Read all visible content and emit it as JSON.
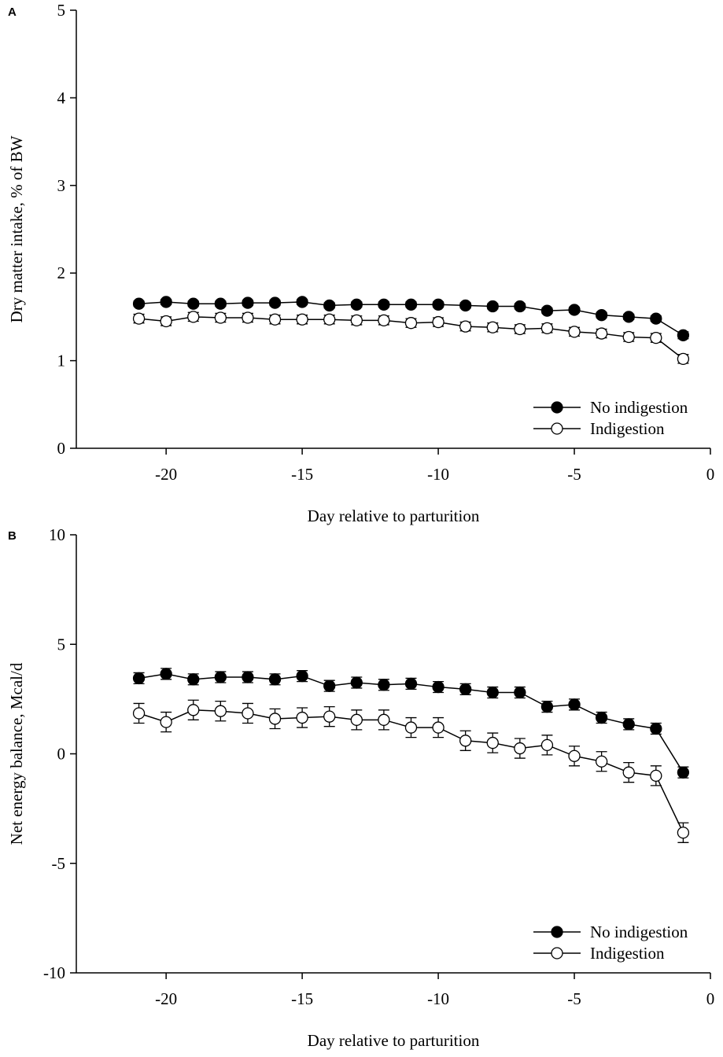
{
  "chart_data": [
    {
      "type": "line",
      "panel": "A",
      "xlabel": "Day relative to parturition",
      "ylabel": "Dry matter intake, % of BW",
      "x": [
        -21,
        -20,
        -19,
        -18,
        -17,
        -16,
        -15,
        -14,
        -13,
        -12,
        -11,
        -10,
        -9,
        -8,
        -7,
        -6,
        -5,
        -4,
        -3,
        -2,
        -1
      ],
      "xlim": [
        -23.3,
        0
      ],
      "xticks": [
        -20,
        -15,
        -10,
        -5,
        0
      ],
      "ylim": [
        0,
        5
      ],
      "yticks": [
        0,
        1,
        2,
        3,
        4,
        5
      ],
      "legend": "lower right",
      "series": [
        {
          "name": "No indigestion",
          "color": "#000000",
          "values": [
            1.65,
            1.67,
            1.65,
            1.65,
            1.66,
            1.66,
            1.67,
            1.63,
            1.64,
            1.64,
            1.64,
            1.64,
            1.63,
            1.62,
            1.62,
            1.57,
            1.58,
            1.52,
            1.5,
            1.48,
            1.29
          ],
          "errors": [
            0.03,
            0.03,
            0.03,
            0.03,
            0.03,
            0.03,
            0.03,
            0.03,
            0.03,
            0.03,
            0.03,
            0.03,
            0.03,
            0.03,
            0.03,
            0.03,
            0.03,
            0.03,
            0.03,
            0.03,
            0.04
          ]
        },
        {
          "name": "Indigestion",
          "color": "#ffffff",
          "values": [
            1.48,
            1.45,
            1.5,
            1.49,
            1.49,
            1.47,
            1.47,
            1.47,
            1.46,
            1.46,
            1.43,
            1.44,
            1.39,
            1.38,
            1.36,
            1.37,
            1.33,
            1.31,
            1.27,
            1.26,
            1.02
          ],
          "errors": [
            0.05,
            0.05,
            0.05,
            0.05,
            0.05,
            0.05,
            0.05,
            0.05,
            0.05,
            0.05,
            0.05,
            0.05,
            0.05,
            0.05,
            0.05,
            0.05,
            0.05,
            0.05,
            0.05,
            0.05,
            0.05
          ]
        }
      ]
    },
    {
      "type": "line",
      "panel": "B",
      "xlabel": "Day relative to parturition",
      "ylabel": "Net energy balance, Mcal/d",
      "x": [
        -21,
        -20,
        -19,
        -18,
        -17,
        -16,
        -15,
        -14,
        -13,
        -12,
        -11,
        -10,
        -9,
        -8,
        -7,
        -6,
        -5,
        -4,
        -3,
        -2,
        -1
      ],
      "xlim": [
        -23.3,
        0
      ],
      "xticks": [
        -20,
        -15,
        -10,
        -5,
        0
      ],
      "ylim": [
        -10,
        10
      ],
      "yticks": [
        -10,
        -5,
        0,
        5,
        10
      ],
      "legend": "lower right",
      "series": [
        {
          "name": "No indigestion",
          "color": "#000000",
          "values": [
            3.45,
            3.65,
            3.4,
            3.5,
            3.5,
            3.4,
            3.55,
            3.1,
            3.25,
            3.15,
            3.2,
            3.05,
            2.95,
            2.8,
            2.8,
            2.15,
            2.25,
            1.65,
            1.35,
            1.15,
            -0.85
          ],
          "errors": [
            0.25,
            0.25,
            0.25,
            0.25,
            0.25,
            0.25,
            0.25,
            0.25,
            0.25,
            0.25,
            0.25,
            0.25,
            0.25,
            0.25,
            0.25,
            0.25,
            0.25,
            0.25,
            0.25,
            0.25,
            0.25
          ]
        },
        {
          "name": "Indigestion",
          "color": "#ffffff",
          "values": [
            1.85,
            1.45,
            2.0,
            1.95,
            1.85,
            1.6,
            1.65,
            1.7,
            1.55,
            1.55,
            1.2,
            1.2,
            0.6,
            0.5,
            0.25,
            0.4,
            -0.1,
            -0.35,
            -0.85,
            -1.0,
            -3.6
          ],
          "errors": [
            0.45,
            0.45,
            0.45,
            0.45,
            0.45,
            0.45,
            0.45,
            0.45,
            0.45,
            0.45,
            0.45,
            0.45,
            0.45,
            0.45,
            0.45,
            0.45,
            0.45,
            0.45,
            0.45,
            0.45,
            0.45
          ]
        }
      ]
    }
  ]
}
